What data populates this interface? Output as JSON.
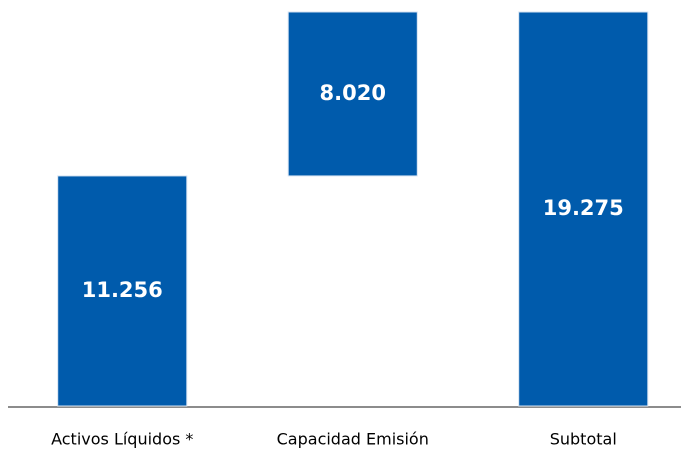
{
  "chart_data": {
    "type": "waterfall",
    "categories": [
      "Activos Líquidos *",
      "Capacidad Emisión",
      "Subtotal"
    ],
    "values": [
      11256,
      8020,
      19275
    ],
    "value_labels": [
      "11.256",
      "8.020",
      "19.275"
    ],
    "color": "#005bac",
    "ylim": [
      0,
      19275
    ]
  }
}
